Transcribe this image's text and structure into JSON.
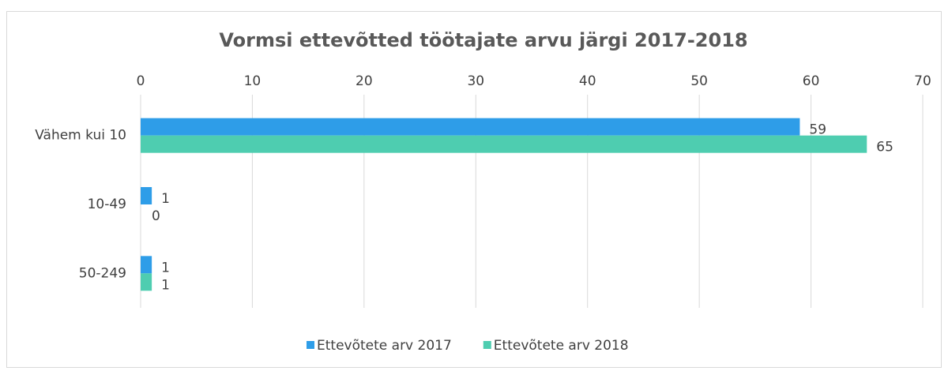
{
  "chart_data": {
    "type": "barh",
    "title": "Vormsi ettevõtted töötajate arvu järgi 2017-2018",
    "categories": [
      "Vähem kui 10",
      "10-49",
      "50-249"
    ],
    "series": [
      {
        "name": "Ettevõtete arv 2017",
        "color": "#2e9de8",
        "values": [
          59,
          1,
          1
        ]
      },
      {
        "name": "Ettevõtete arv 2018",
        "color": "#4ecdb0",
        "values": [
          65,
          0,
          1
        ]
      }
    ],
    "xlim": [
      0,
      70
    ],
    "xticks": [
      0,
      10,
      20,
      30,
      40,
      50,
      60,
      70
    ],
    "grid": true,
    "legend": "bottom"
  }
}
